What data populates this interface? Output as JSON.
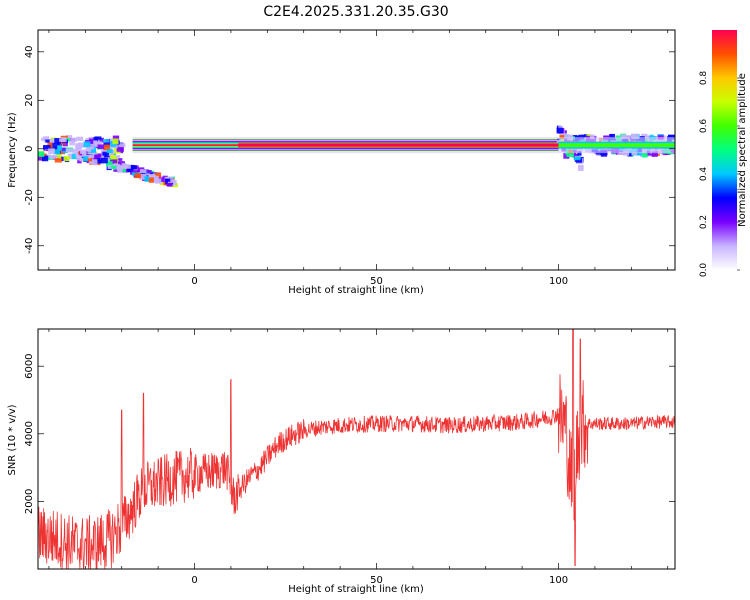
{
  "title": "C2E4.2025.331.20.35.G30",
  "chart_data": [
    {
      "type": "heatmap",
      "xlabel": "Height of straight line (km)",
      "ylabel": "Frequency (Hz)",
      "xlim": [
        -43,
        132
      ],
      "ylim": [
        -50,
        49
      ],
      "xticks": [
        0,
        50,
        100
      ],
      "yticks": [
        -40,
        -20,
        0,
        20,
        40
      ],
      "colorbar": {
        "label": "Normalized spectral amplitude",
        "range": [
          0,
          1
        ],
        "ticks": [
          "0.0",
          "0.2",
          "0.4",
          "0.6",
          "0.8"
        ],
        "colors": [
          "#ffffff",
          "#c8b4ff",
          "#7a00ff",
          "#0000ff",
          "#00c8ff",
          "#00ff80",
          "#40ff00",
          "#c8ff00",
          "#ffc800",
          "#ff5000",
          "#ff0050"
        ]
      },
      "main_band": {
        "x_start": -17,
        "x_end": 100,
        "center_freq_hz": 1.5,
        "strong_x_start": 12,
        "strong_x_end": 100
      },
      "noisy_segments": [
        {
          "x_start": -43,
          "x_end": -20,
          "center_freq_hz": 0,
          "spread_hz": 5
        },
        {
          "x_start": -32,
          "x_end": -6,
          "trend_freq_start_hz": -2,
          "trend_freq_end_hz": -14
        },
        {
          "x_start": 100,
          "x_end": 106,
          "trend_freq_start_hz": 9,
          "trend_freq_end_hz": -7
        },
        {
          "x_start": 100,
          "x_end": 132,
          "center_freq_hz": 1.5,
          "spread_hz": 4
        }
      ]
    },
    {
      "type": "line",
      "xlabel": "Height of straight line (km)",
      "ylabel": "SNR (10 * v/v)",
      "xlim": [
        -43,
        132
      ],
      "ylim": [
        0,
        7100
      ],
      "xticks": [
        0,
        50,
        100
      ],
      "yticks": [
        2000,
        4000,
        6000
      ],
      "series": [
        {
          "color": "#ee3333",
          "x": [
            -43,
            -38,
            -33,
            -28,
            -23,
            -20,
            -18,
            -15,
            -13,
            -10,
            -8,
            -5,
            -3,
            0,
            3,
            6,
            8,
            9,
            10,
            11,
            12,
            15,
            18,
            20,
            23,
            26,
            30,
            35,
            40,
            50,
            60,
            70,
            80,
            90,
            95,
            98,
            100,
            101,
            102,
            103,
            104,
            105,
            106,
            107,
            108,
            110,
            115,
            120,
            125,
            132
          ],
          "values": [
            1000,
            900,
            700,
            700,
            900,
            1300,
            1600,
            2200,
            2400,
            2500,
            2600,
            2700,
            2750,
            2800,
            2850,
            2900,
            3000,
            2900,
            2300,
            2100,
            2300,
            2700,
            3000,
            3300,
            3700,
            3900,
            4100,
            4200,
            4250,
            4300,
            4300,
            4250,
            4300,
            4350,
            4450,
            4500,
            4600,
            4400,
            4200,
            3000,
            2500,
            3500,
            4200,
            4300,
            4300,
            4300,
            4300,
            4300,
            4350,
            4350
          ]
        }
      ],
      "spikes": [
        {
          "x": -20,
          "value": 4700
        },
        {
          "x": -14,
          "value": 5200
        },
        {
          "x": 10,
          "value": 5600
        },
        {
          "x": 104,
          "value": 7100
        },
        {
          "x": 106,
          "value": 6800
        },
        {
          "x": 104.5,
          "value": 100
        }
      ]
    }
  ]
}
